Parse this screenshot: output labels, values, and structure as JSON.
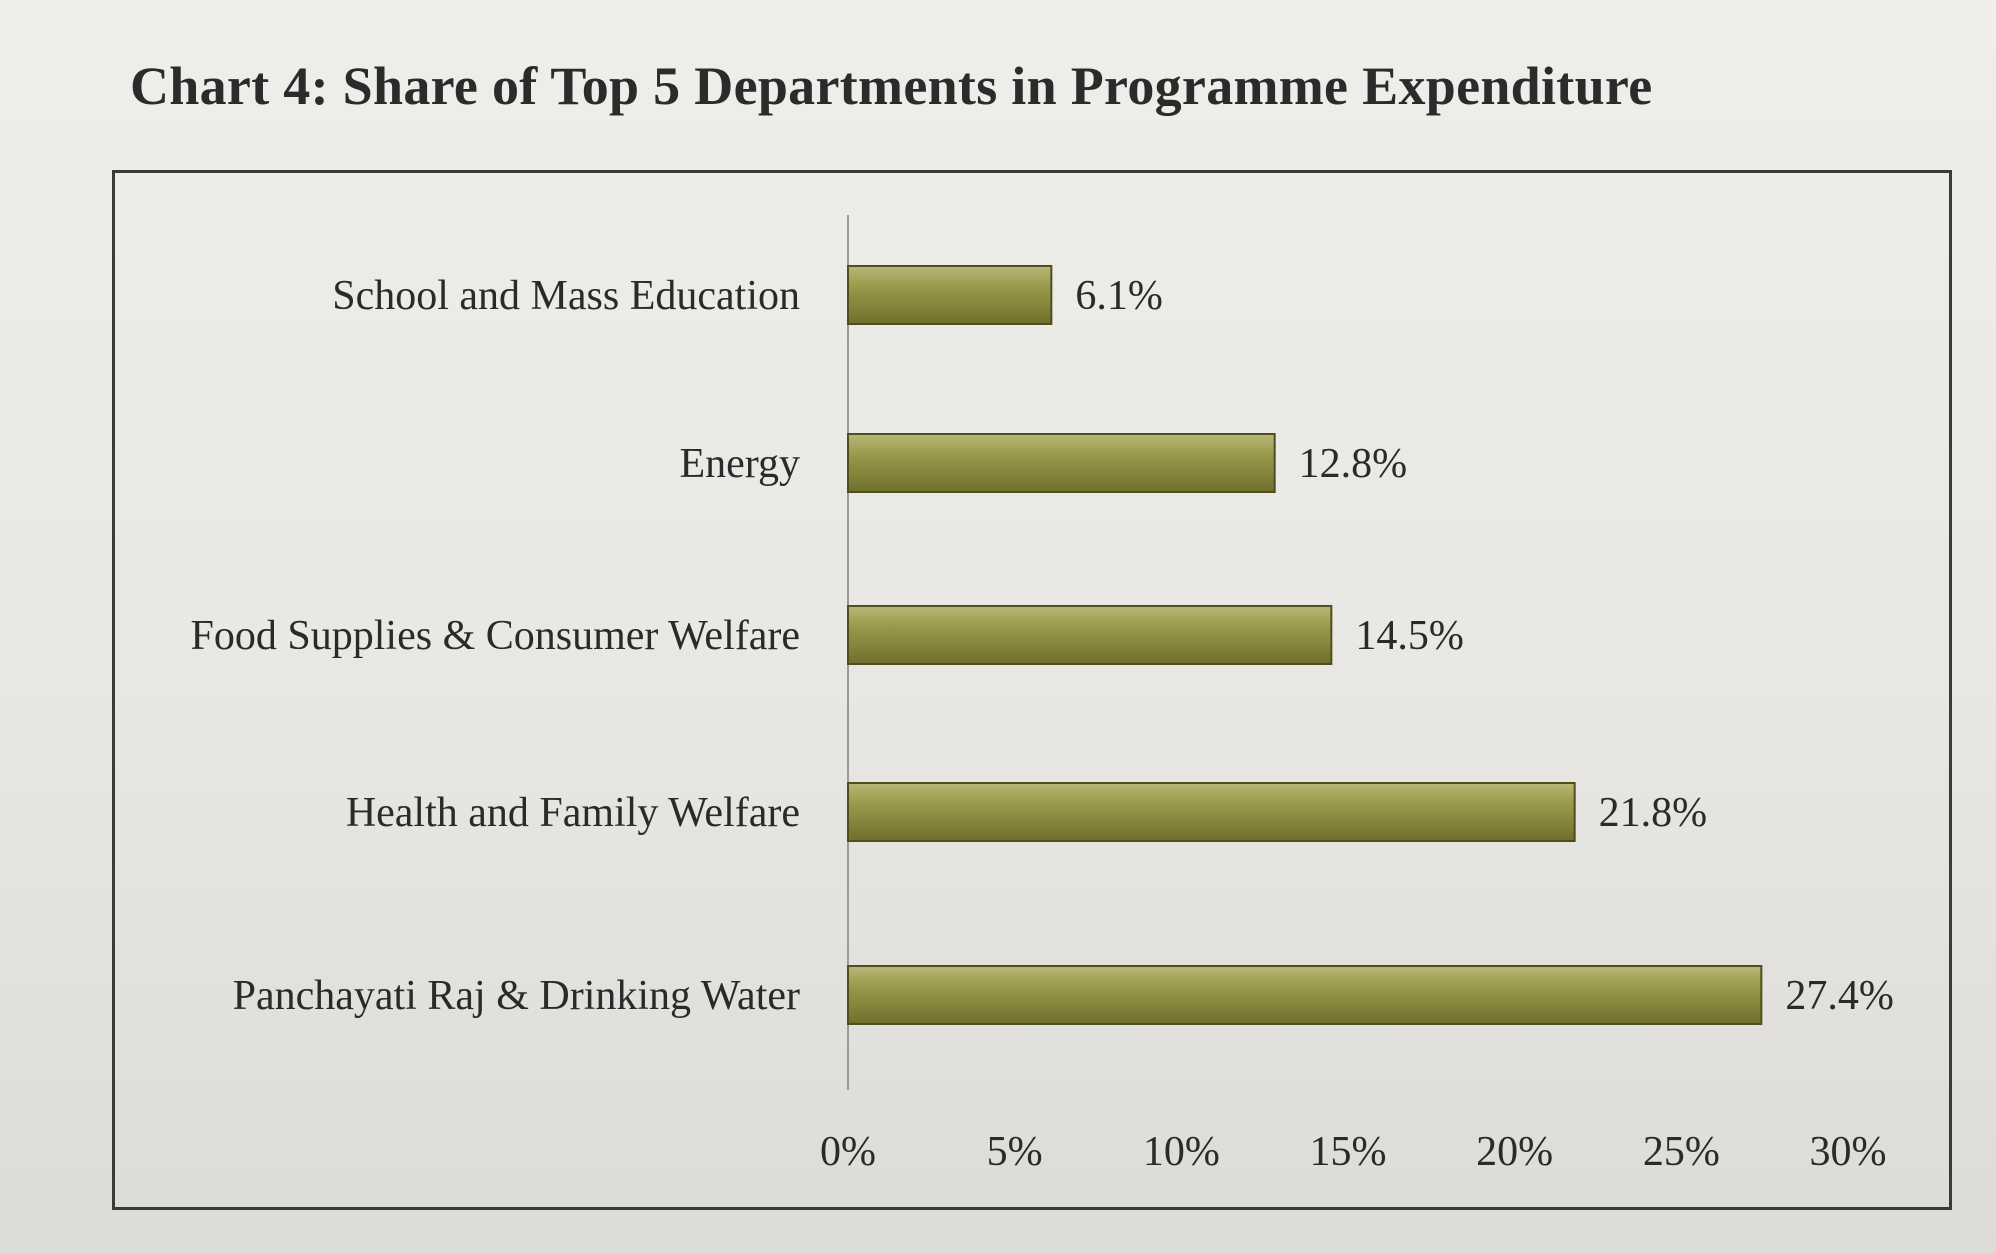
{
  "chart_data": {
    "type": "bar",
    "orientation": "horizontal",
    "title": "Chart 4: Share of Top 5 Departments in Programme Expenditure",
    "categories": [
      "School and Mass Education",
      "Energy",
      "Food Supplies & Consumer Welfare",
      "Health and Family Welfare",
      "Panchayati Raj & Drinking Water"
    ],
    "values": [
      6.1,
      12.8,
      14.5,
      21.8,
      27.4
    ],
    "data_labels": [
      "6.1%",
      "12.8%",
      "14.5%",
      "21.8%",
      "27.4%"
    ],
    "xlim": [
      0,
      30
    ],
    "xticks": [
      0,
      5,
      10,
      15,
      20,
      25,
      30
    ],
    "xtick_labels": [
      "0%",
      "5%",
      "10%",
      "15%",
      "20%",
      "25%",
      "30%"
    ],
    "xlabel": "",
    "ylabel": "",
    "grid": false,
    "bar_color": "#8a8a3e"
  }
}
